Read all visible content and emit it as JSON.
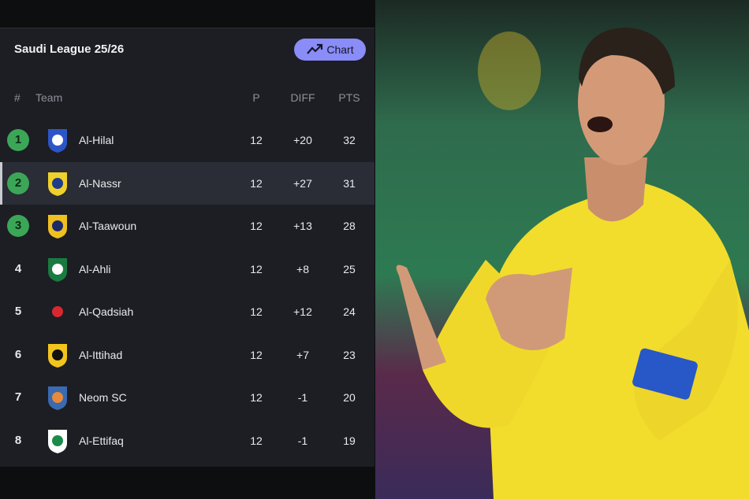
{
  "header": {
    "title": "Saudi League 25/26",
    "button": "Chart"
  },
  "table": {
    "columns": [
      "#",
      "Team",
      "P",
      "DIFF",
      "PTS"
    ],
    "rows": [
      {
        "rank": 1,
        "team": "Al-Hilal",
        "p": 12,
        "diff": "+20",
        "pts": 32
      },
      {
        "rank": 2,
        "team": "Al-Nassr",
        "p": 12,
        "diff": "+27",
        "pts": 31
      },
      {
        "rank": 3,
        "team": "Al-Taawoun",
        "p": 12,
        "diff": "+13",
        "pts": 28
      },
      {
        "rank": 4,
        "team": "Al-Ahli",
        "p": 12,
        "diff": "+8",
        "pts": 25
      },
      {
        "rank": 5,
        "team": "Al-Qadsiah",
        "p": 12,
        "diff": "+12",
        "pts": 24
      },
      {
        "rank": 6,
        "team": "Al-Ittihad",
        "p": 12,
        "diff": "+7",
        "pts": 23
      },
      {
        "rank": 7,
        "team": "Neom SC",
        "p": 12,
        "diff": "-1",
        "pts": 20
      },
      {
        "rank": 8,
        "team": "Al-Ettifaq",
        "p": 12,
        "diff": "-1",
        "pts": 19
      }
    ]
  }
}
